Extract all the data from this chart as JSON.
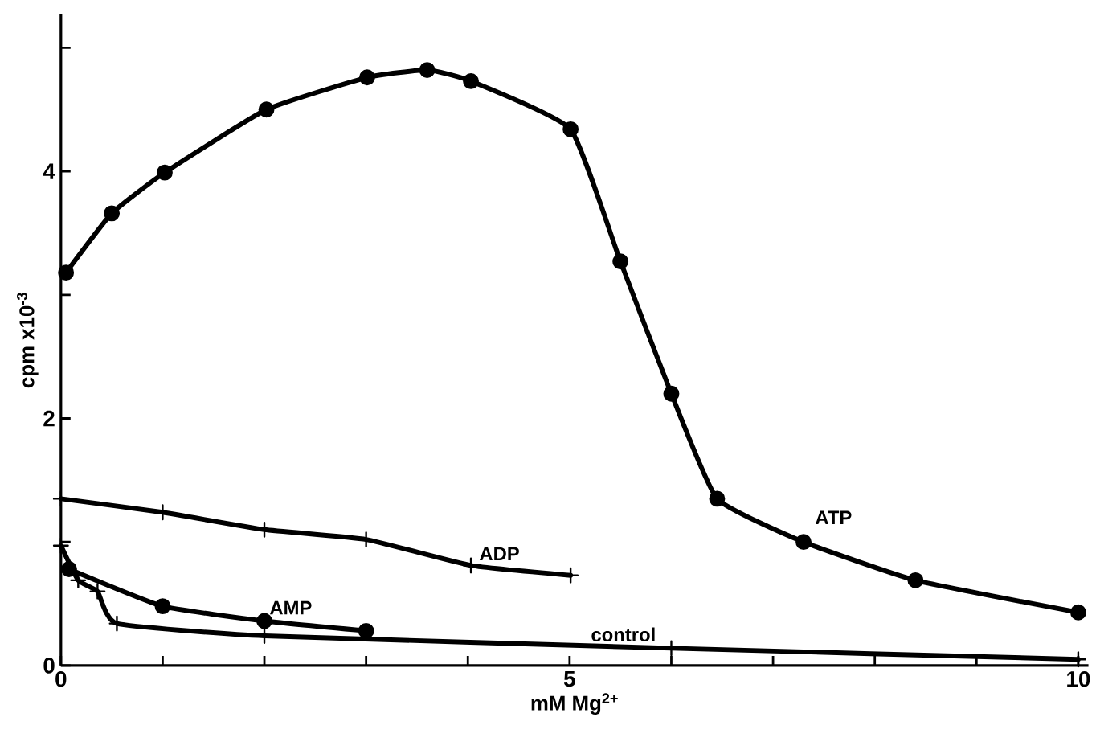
{
  "chart_data": {
    "type": "line",
    "xlabel": "mM Mg$^{2+}$",
    "ylabel": "cpm  x10$^{-3}$",
    "xlim": [
      0,
      10.1
    ],
    "ylim": [
      0,
      5.27
    ],
    "xticks": [
      0,
      {
        "value": 1,
        "label": null
      },
      {
        "value": 2,
        "label": null
      },
      {
        "value": 3,
        "label": null
      },
      {
        "value": 4,
        "label": null
      },
      5,
      {
        "value": 6,
        "label": null
      },
      {
        "value": 7,
        "label": null
      },
      {
        "value": 8,
        "label": null
      },
      {
        "value": 9,
        "label": null
      },
      10
    ],
    "yticks": [
      0,
      {
        "value": 1,
        "label": null
      },
      2,
      {
        "value": 3,
        "label": null
      },
      4,
      {
        "value": 5,
        "label": null
      }
    ],
    "grid": false,
    "legend": false,
    "line_style": "solid",
    "series": [
      {
        "name": "ATP",
        "color": "#000000",
        "marker": "circle",
        "x": [
          0.05,
          0.5,
          1.02,
          2.02,
          3.01,
          3.6,
          4.03,
          5.01,
          5.5,
          6.0,
          6.45,
          7.3,
          8.4,
          10
        ],
        "values": [
          3.18,
          3.66,
          3.99,
          4.5,
          4.76,
          4.82,
          4.73,
          4.34,
          3.27,
          2.2,
          1.35,
          1.0,
          0.69,
          0.43
        ]
      },
      {
        "name": "ADP",
        "color": "#000000",
        "marker": "cross",
        "x": [
          0,
          1,
          2,
          3,
          4.03,
          5.01
        ],
        "values": [
          1.35,
          1.24,
          1.1,
          1.02,
          0.81,
          0.73
        ]
      },
      {
        "name": "AMP",
        "color": "#000000",
        "marker": "circle",
        "x": [
          0.08,
          1,
          2,
          3
        ],
        "values": [
          0.78,
          0.48,
          0.36,
          0.28
        ]
      },
      {
        "name": "control",
        "color": "#000000",
        "marker": "cross",
        "x": [
          0,
          0.17,
          0.36,
          0.55,
          2,
          6,
          10
        ],
        "values": [
          0.97,
          0.69,
          0.6,
          0.34,
          0.24,
          0.14,
          0.05
        ]
      }
    ]
  }
}
